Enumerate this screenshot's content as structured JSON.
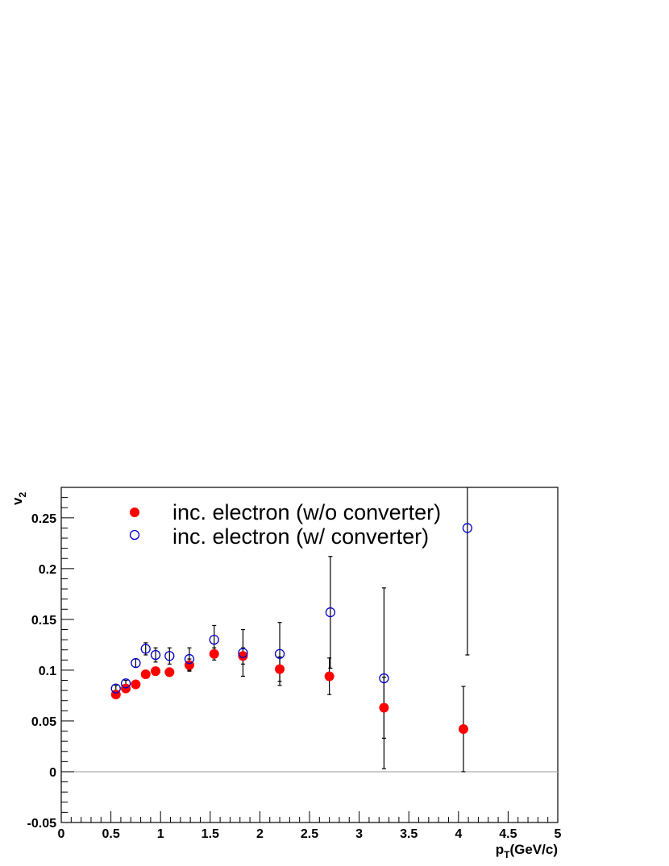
{
  "chart_data": {
    "type": "scatter",
    "xlabel": "p",
    "xlabel_sub": "T",
    "xlabel_unit": "(GeV/c)",
    "ylabel": "v",
    "ylabel_sub": "2",
    "xlim": [
      0,
      5
    ],
    "ylim": [
      -0.05,
      0.28
    ],
    "x_ticks": [
      "0",
      "0.5",
      "1",
      "1.5",
      "2",
      "2.5",
      "3",
      "3.5",
      "4",
      "4.5",
      "5"
    ],
    "x_tick_values": [
      0,
      0.5,
      1,
      1.5,
      2,
      2.5,
      3,
      3.5,
      4,
      4.5,
      5
    ],
    "y_ticks": [
      "-0.05",
      "0",
      "0.05",
      "0.1",
      "0.15",
      "0.2",
      "0.25"
    ],
    "y_tick_values": [
      -0.05,
      0,
      0.05,
      0.1,
      0.15,
      0.2,
      0.25
    ],
    "zero_line": true,
    "legend_position": "top-left",
    "series": [
      {
        "name": "inc. electron (w/o converter)",
        "marker": "filled-circle",
        "color": "#ff0000",
        "points": [
          {
            "x": 0.55,
            "y": 0.076,
            "err": 0.003
          },
          {
            "x": 0.65,
            "y": 0.082,
            "err": 0.003
          },
          {
            "x": 0.75,
            "y": 0.086,
            "err": 0.003
          },
          {
            "x": 0.85,
            "y": 0.096,
            "err": 0.003
          },
          {
            "x": 0.95,
            "y": 0.099,
            "err": 0.004
          },
          {
            "x": 1.09,
            "y": 0.098,
            "err": 0.004
          },
          {
            "x": 1.29,
            "y": 0.105,
            "err": 0.006
          },
          {
            "x": 1.54,
            "y": 0.116,
            "err": 0.006
          },
          {
            "x": 1.83,
            "y": 0.114,
            "err": 0.008
          },
          {
            "x": 2.2,
            "y": 0.101,
            "err": 0.012
          },
          {
            "x": 2.7,
            "y": 0.094,
            "err": 0.018
          },
          {
            "x": 3.25,
            "y": 0.063,
            "err": 0.03
          },
          {
            "x": 4.05,
            "y": 0.042,
            "err": 0.042
          }
        ]
      },
      {
        "name": "inc. electron (w/ converter)",
        "marker": "open-circle",
        "color": "#0000cc",
        "points": [
          {
            "x": 0.55,
            "y": 0.082,
            "err": 0.003
          },
          {
            "x": 0.65,
            "y": 0.087,
            "err": 0.003
          },
          {
            "x": 0.75,
            "y": 0.107,
            "err": 0.004
          },
          {
            "x": 0.85,
            "y": 0.121,
            "err": 0.006
          },
          {
            "x": 0.95,
            "y": 0.115,
            "err": 0.007
          },
          {
            "x": 1.09,
            "y": 0.114,
            "err": 0.008
          },
          {
            "x": 1.29,
            "y": 0.111,
            "err": 0.011
          },
          {
            "x": 1.54,
            "y": 0.13,
            "err": 0.014
          },
          {
            "x": 1.83,
            "y": 0.117,
            "err": 0.023
          },
          {
            "x": 2.2,
            "y": 0.116,
            "err": 0.031
          },
          {
            "x": 2.71,
            "y": 0.157,
            "err": 0.055
          },
          {
            "x": 3.25,
            "y": 0.092,
            "err": 0.089
          },
          {
            "x": 4.09,
            "y": 0.24,
            "err": 0.125
          }
        ]
      }
    ]
  }
}
